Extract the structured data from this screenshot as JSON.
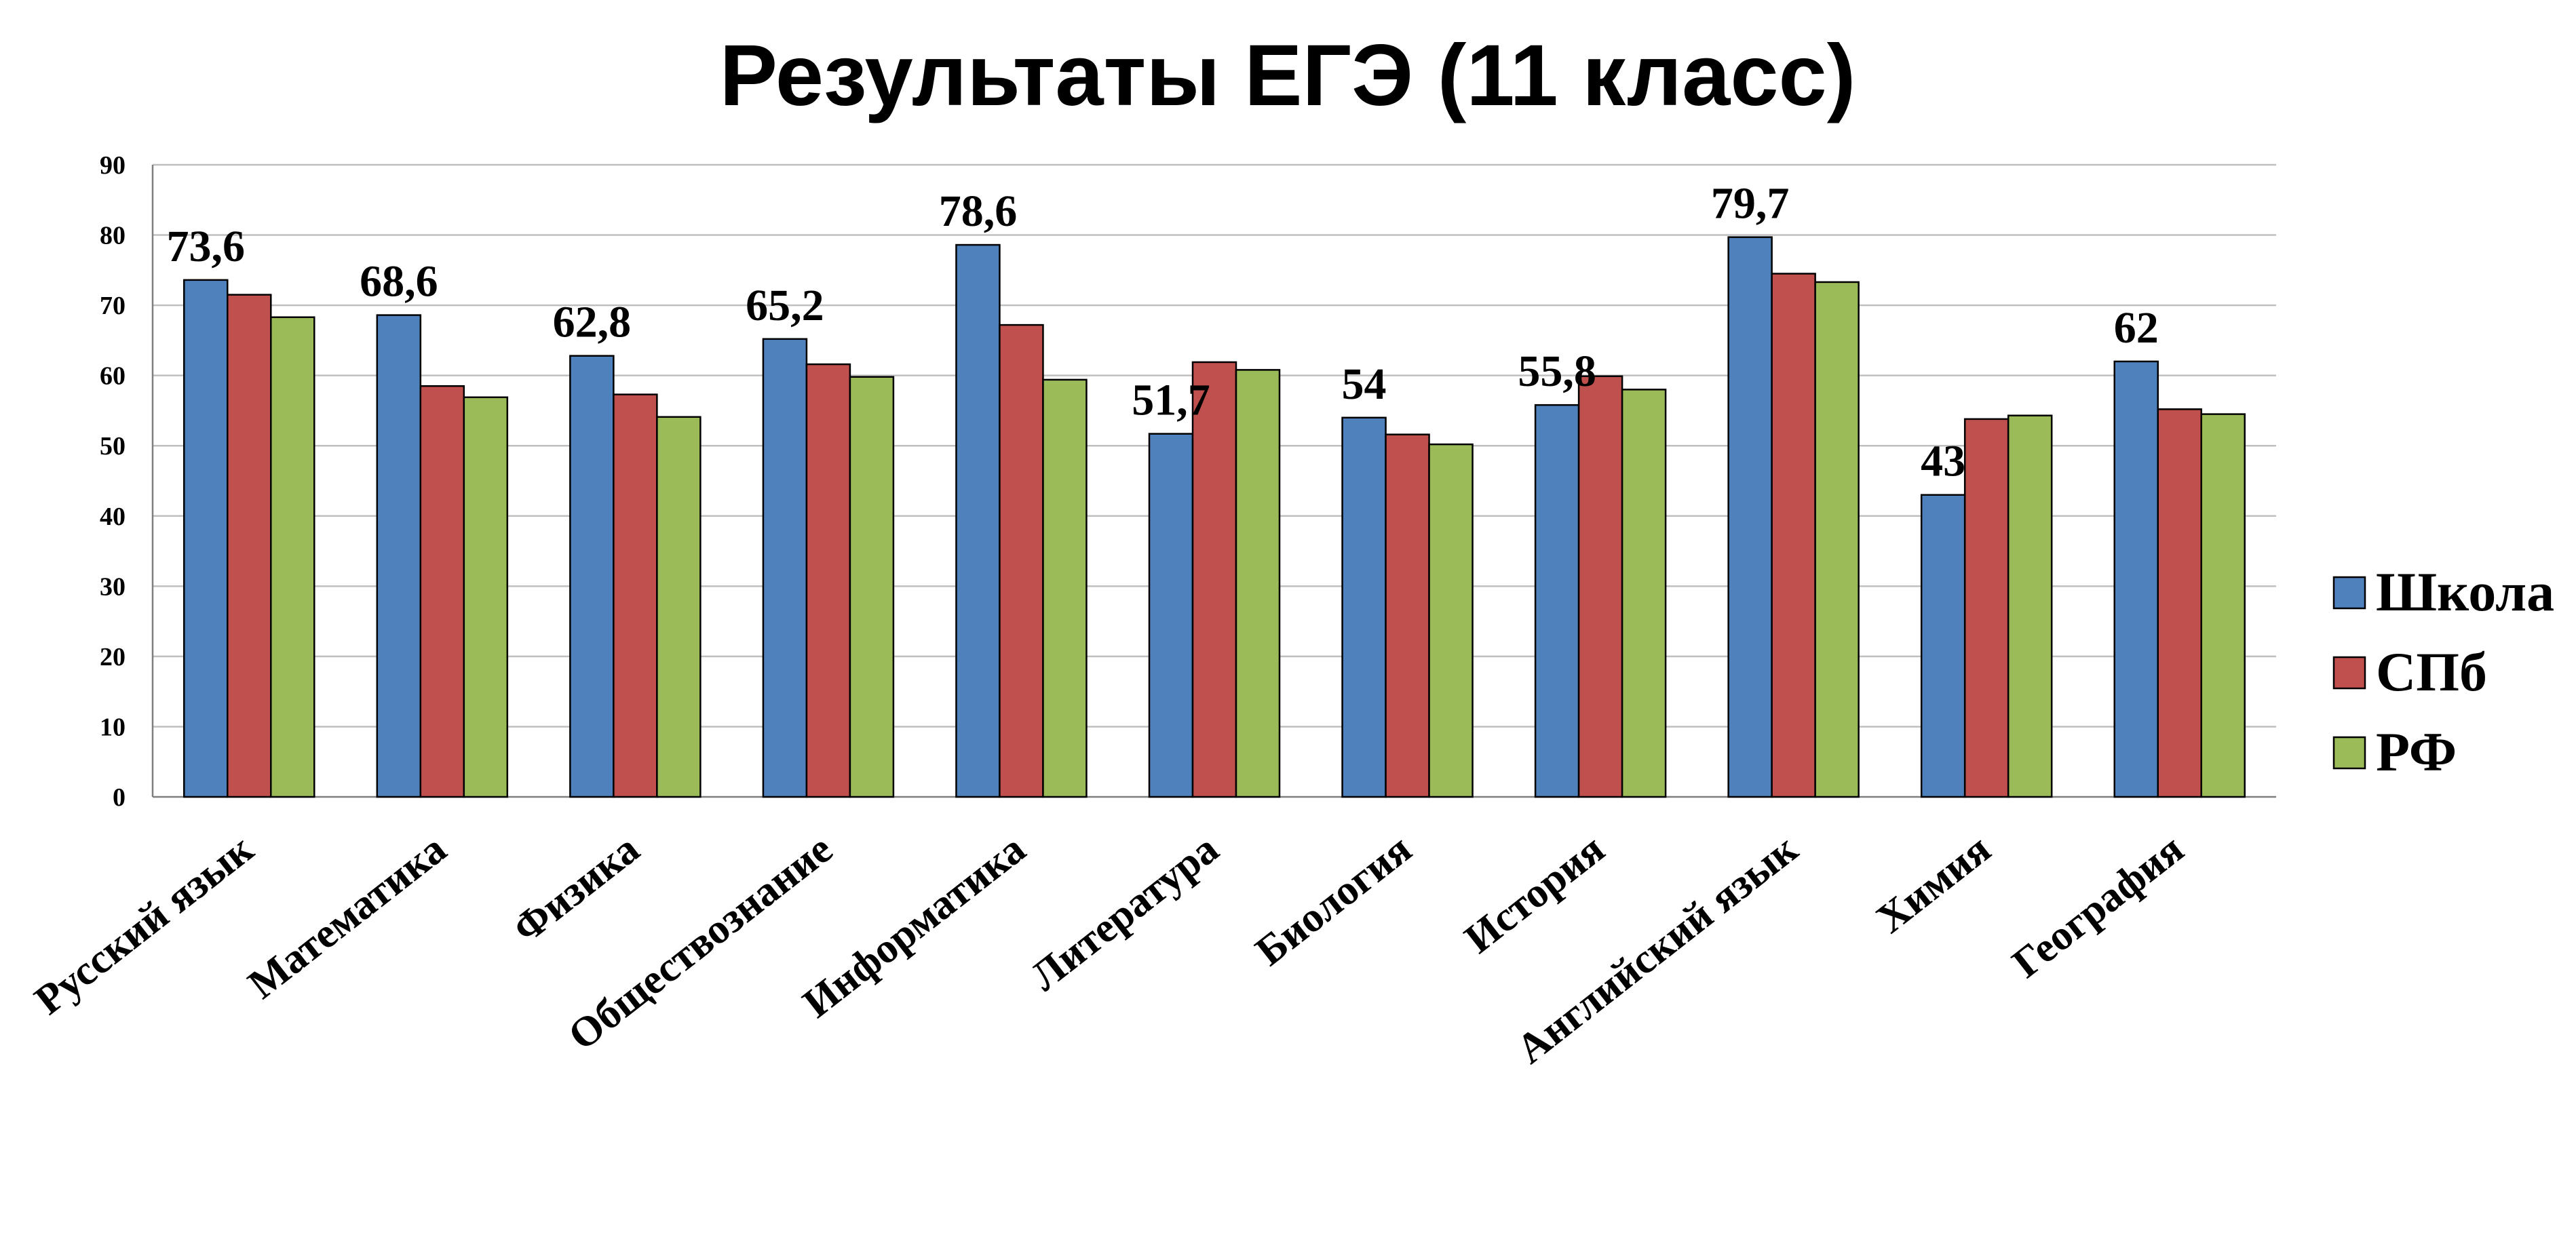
{
  "chart_data": {
    "type": "bar",
    "title": "Результаты ЕГЭ (11 класс)",
    "categories": [
      "Русский язык",
      "Математика",
      "Физика",
      "Обществознание",
      "Информатика",
      "Литература",
      "Биология",
      "История",
      "Английский язык",
      "Химия",
      "География"
    ],
    "series": [
      {
        "name": "Школа",
        "color": "#4f81bd",
        "values": [
          73.6,
          68.6,
          62.8,
          65.2,
          78.6,
          51.7,
          54,
          55.8,
          79.7,
          43,
          62
        ],
        "data_labels": [
          "73,6",
          "68,6",
          "62,8",
          "65,2",
          "78,6",
          "51,7",
          "54",
          "55,8",
          "79,7",
          "43",
          "62"
        ]
      },
      {
        "name": "СПб",
        "color": "#c0504d",
        "values": [
          71.5,
          58.5,
          57.3,
          61.6,
          67.2,
          61.9,
          51.6,
          59.9,
          74.5,
          53.8,
          55.2
        ]
      },
      {
        "name": "РФ",
        "color": "#9bbb59",
        "values": [
          68.3,
          56.9,
          54.1,
          59.8,
          59.4,
          60.8,
          50.2,
          58,
          73.3,
          54.3,
          54.5
        ]
      }
    ],
    "y_ticks": [
      "0",
      "10",
      "20",
      "30",
      "40",
      "50",
      "60",
      "70",
      "80",
      "90"
    ],
    "ylim": [
      0,
      90
    ],
    "grid": true,
    "legend_position": "right"
  }
}
